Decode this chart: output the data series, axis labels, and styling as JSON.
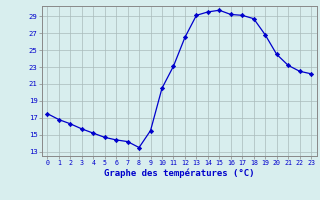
{
  "hours": [
    0,
    1,
    2,
    3,
    4,
    5,
    6,
    7,
    8,
    9,
    10,
    11,
    12,
    13,
    14,
    15,
    16,
    17,
    18,
    19,
    20,
    21,
    22,
    23
  ],
  "temps": [
    17.5,
    16.8,
    16.3,
    15.7,
    15.2,
    14.7,
    14.4,
    14.2,
    13.5,
    15.5,
    20.5,
    23.1,
    26.5,
    29.1,
    29.5,
    29.7,
    29.2,
    29.1,
    28.7,
    26.8,
    24.5,
    23.2,
    22.5,
    22.2
  ],
  "line_color": "#0000cc",
  "marker": "D",
  "marker_size": 2.2,
  "bg_color": "#d8eeee",
  "grid_color": "#aabbbb",
  "xlabel": "Graphe des températures (°C)",
  "xlabel_color": "#0000cc",
  "tick_color": "#0000cc",
  "axis_color": "#888888",
  "ylim": [
    12.5,
    30.2
  ],
  "xlim": [
    -0.5,
    23.5
  ],
  "yticks": [
    13,
    15,
    17,
    19,
    21,
    23,
    25,
    27,
    29
  ],
  "xticks": [
    0,
    1,
    2,
    3,
    4,
    5,
    6,
    7,
    8,
    9,
    10,
    11,
    12,
    13,
    14,
    15,
    16,
    17,
    18,
    19,
    20,
    21,
    22,
    23
  ]
}
